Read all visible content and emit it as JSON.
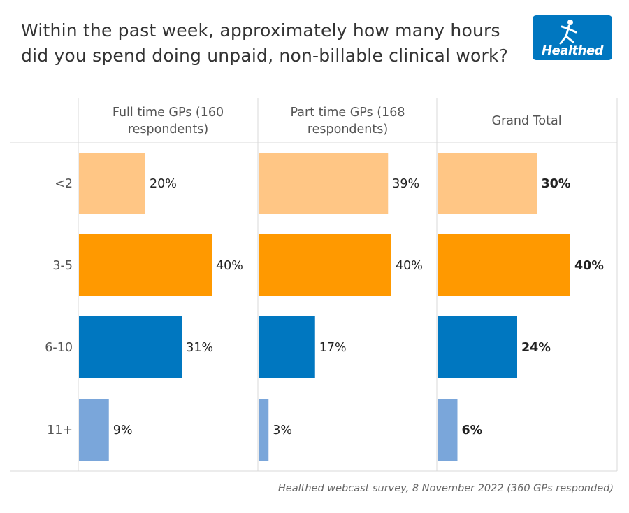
{
  "title_lines": [
    "Within the past week, approximately how many hours",
    "did you spend doing unpaid, non-billable clinical work?"
  ],
  "logo": {
    "text": "Healthed",
    "icon": "runner-icon",
    "color": "#0077c0"
  },
  "source": "Healthed webcast survey, 8 November 2022 (360 GPs responded)",
  "chart_data": {
    "type": "bar",
    "orientation": "horizontal",
    "categories": [
      "<2",
      "3-5",
      "6-10",
      "11+"
    ],
    "columns": [
      {
        "header_lines": [
          "Full time GPs (160",
          "respondents)"
        ],
        "values": [
          20,
          40,
          31,
          9
        ],
        "labels": [
          "20%",
          "40%",
          "31%",
          "9%"
        ],
        "bold_labels": false
      },
      {
        "header_lines": [
          "Part time GPs (168",
          "respondents)"
        ],
        "values": [
          39,
          40,
          17,
          3
        ],
        "labels": [
          "39%",
          "40%",
          "17%",
          "3%"
        ],
        "bold_labels": false
      },
      {
        "header_lines": [
          "Grand Total"
        ],
        "values": [
          30,
          40,
          24,
          6
        ],
        "labels": [
          "30%",
          "40%",
          "24%",
          "6%"
        ],
        "bold_labels": true
      }
    ],
    "category_colors": [
      "#ffc685",
      "#ff9900",
      "#0077c0",
      "#7aa6da"
    ],
    "grid": false,
    "legend": "none"
  }
}
